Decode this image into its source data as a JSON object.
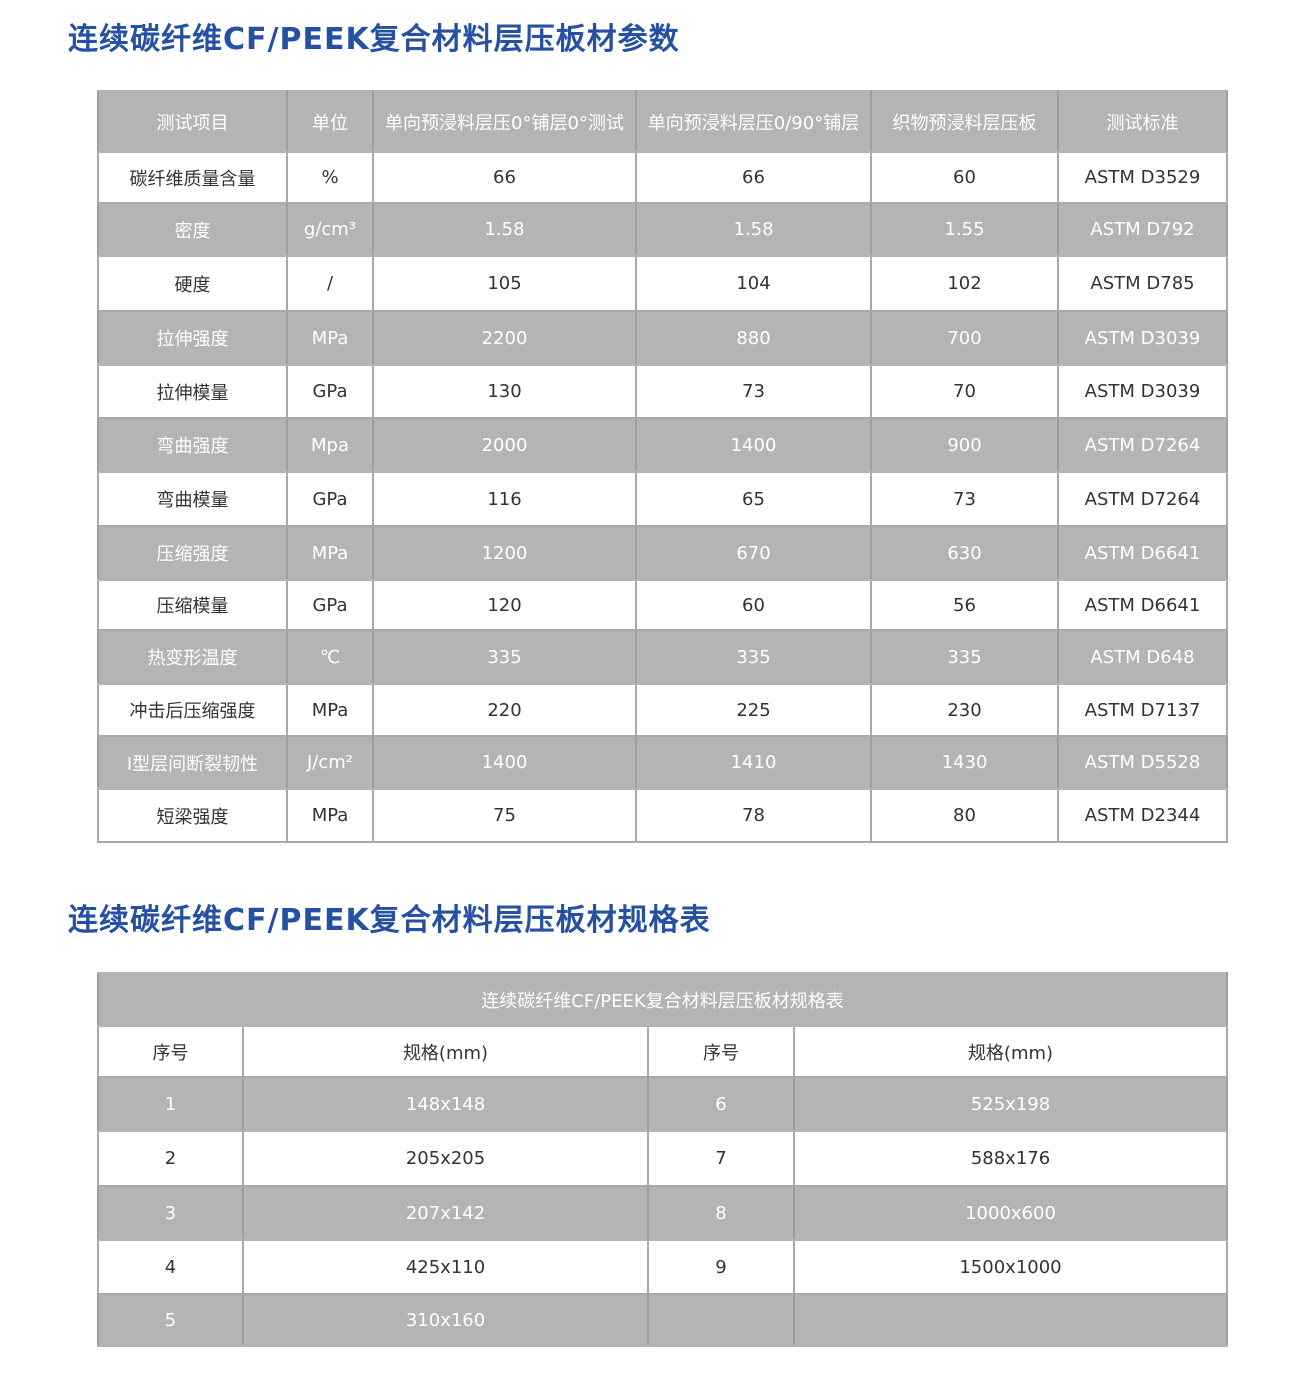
{
  "title1": "连续碳纤维CF/PEEK复合材料层压板材参数",
  "params": {
    "headers": [
      "测试项目",
      "单位",
      "单向预浸料层压0°铺层0°测试",
      "单向预浸料层压0/90°铺层",
      "织物预浸料层压板",
      "测试标准"
    ],
    "rows": [
      [
        "碳纤维质量含量",
        "%",
        "66",
        "66",
        "60",
        "ASTM D3529"
      ],
      [
        "密度",
        "g/cm³",
        "1.58",
        "1.58",
        "1.55",
        "ASTM D792"
      ],
      [
        "硬度",
        "/",
        "105",
        "104",
        "102",
        "ASTM D785"
      ],
      [
        "拉伸强度",
        "MPa",
        "2200",
        "880",
        "700",
        "ASTM D3039"
      ],
      [
        "拉伸模量",
        "GPa",
        "130",
        "73",
        "70",
        "ASTM D3039"
      ],
      [
        "弯曲强度",
        "Mpa",
        "2000",
        "1400",
        "900",
        "ASTM D7264"
      ],
      [
        "弯曲模量",
        "GPa",
        "116",
        "65",
        "73",
        "ASTM D7264"
      ],
      [
        "压缩强度",
        "MPa",
        "1200",
        "670",
        "630",
        "ASTM D6641"
      ],
      [
        "压缩模量",
        "GPa",
        "120",
        "60",
        "56",
        "ASTM D6641"
      ],
      [
        "热变形温度",
        "℃",
        "335",
        "335",
        "335",
        "ASTM D648"
      ],
      [
        "冲击后压缩强度",
        "MPa",
        "220",
        "225",
        "230",
        "ASTM D7137"
      ],
      [
        "I型层间断裂韧性",
        "J/cm²",
        "1400",
        "1410",
        "1430",
        "ASTM D5528"
      ],
      [
        "短梁强度",
        "MPa",
        "75",
        "78",
        "80",
        "ASTM D2344"
      ]
    ]
  },
  "title2": "连续碳纤维CF/PEEK复合材料层压板材规格表",
  "specs": {
    "caption": "连续碳纤维CF/PEEK复合材料层压板材规格表",
    "headers": [
      "序号",
      "规格(mm)",
      "序号",
      "规格(mm)"
    ],
    "rows": [
      [
        "1",
        "148x148",
        "6",
        "525x198"
      ],
      [
        "2",
        "205x205",
        "7",
        "588x176"
      ],
      [
        "3",
        "207x142",
        "8",
        "1000x600"
      ],
      [
        "4",
        "425x110",
        "9",
        "1500x1000"
      ],
      [
        "5",
        "310x160",
        "",
        ""
      ]
    ]
  }
}
